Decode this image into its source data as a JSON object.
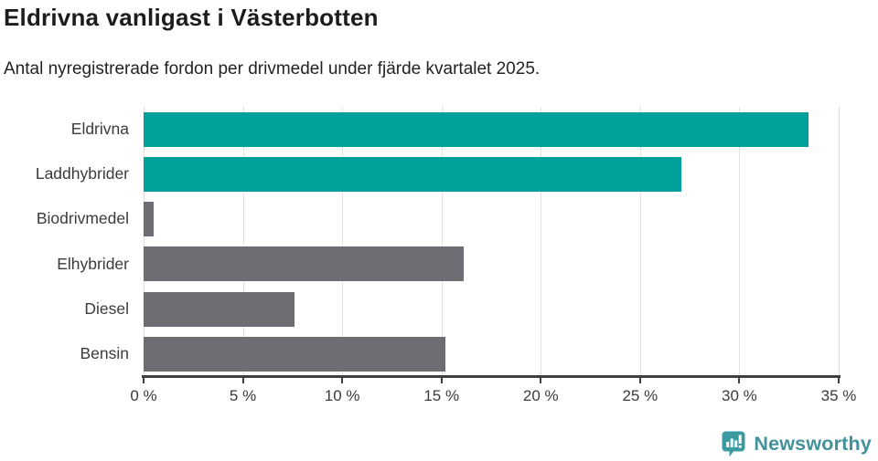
{
  "header": {
    "title": "Eldrivna vanligast i Västerbotten",
    "subtitle": "Antal nyregistrerade fordon per drivmedel under fjärde kvartalet 2025."
  },
  "chart_data": {
    "type": "bar",
    "orientation": "horizontal",
    "title": "Eldrivna vanligast i Västerbotten",
    "subtitle": "Antal nyregistrerade fordon per drivmedel under fjärde kvartalet 2025.",
    "categories": [
      "Eldrivna",
      "Laddhybrider",
      "Biodrivmedel",
      "Elhybrider",
      "Diesel",
      "Bensin"
    ],
    "values": [
      33.5,
      27.1,
      0.5,
      16.1,
      7.6,
      15.2
    ],
    "bar_colors": [
      "#00a09b",
      "#00a09b",
      "#6d6d74",
      "#6d6d74",
      "#6d6d74",
      "#6d6d74"
    ],
    "xlabel": "",
    "ylabel": "",
    "xlim": [
      0,
      35
    ],
    "x_ticks": [
      0,
      5,
      10,
      15,
      20,
      25,
      30,
      35
    ],
    "x_tick_suffix": " %",
    "grid": "vertical-gridlines",
    "legend": "none"
  },
  "colors": {
    "accent_teal": "#00a09b",
    "neutral_gray": "#6d6d74",
    "axis": "#3f3f3f",
    "gridline": "#e2e2e2",
    "title_text": "#1c1c1c",
    "body_text": "#3b3b3b",
    "brand_teal": "#42929b",
    "logo_icon_fill": "#3a9ba1"
  },
  "footer": {
    "brand": "Newsworthy",
    "logo_icon": "bar-chart-speech-bubble-icon"
  }
}
